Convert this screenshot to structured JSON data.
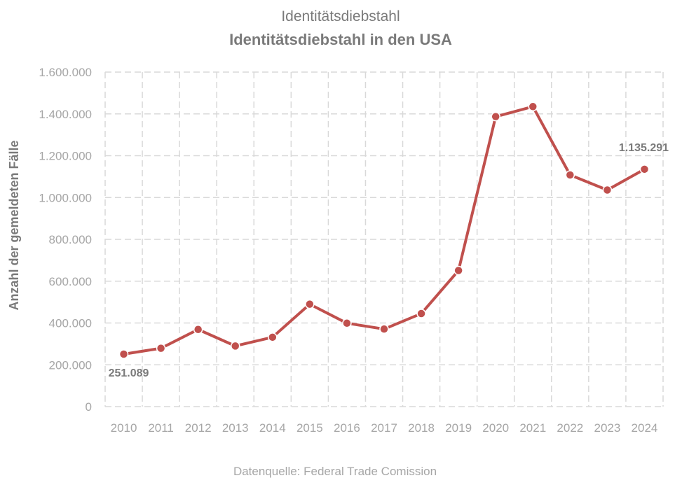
{
  "chart_data": {
    "type": "line",
    "supertitle": "Identitätsdiebstahl",
    "title": "Identitätsdiebstahl in den USA",
    "xlabel": "",
    "ylabel": "Anzahl der gemeldeten Fälle",
    "categories": [
      "2010",
      "2011",
      "2012",
      "2013",
      "2014",
      "2015",
      "2016",
      "2017",
      "2018",
      "2019",
      "2020",
      "2021",
      "2022",
      "2023",
      "2024"
    ],
    "series": [
      {
        "name": "",
        "color": "#c0504d",
        "values": [
          251089,
          279000,
          369000,
          290000,
          332000,
          490000,
          399000,
          371000,
          445000,
          651000,
          1387000,
          1435000,
          1108000,
          1036000,
          1135291
        ]
      }
    ],
    "ylim": [
      0,
      1600000
    ],
    "yticks": [
      0,
      200000,
      400000,
      600000,
      800000,
      1000000,
      1200000,
      1400000,
      1600000
    ],
    "ytick_labels": [
      "0",
      "200.000",
      "400.000",
      "600.000",
      "800.000",
      "1.000.000",
      "1.200.000",
      "1.400.000",
      "1.600.000"
    ],
    "data_labels": [
      {
        "index": 0,
        "text": "251.089"
      },
      {
        "index": 14,
        "text": "1.135.291"
      }
    ],
    "grid": true,
    "source": "Datenquelle: Federal Trade Comission"
  }
}
